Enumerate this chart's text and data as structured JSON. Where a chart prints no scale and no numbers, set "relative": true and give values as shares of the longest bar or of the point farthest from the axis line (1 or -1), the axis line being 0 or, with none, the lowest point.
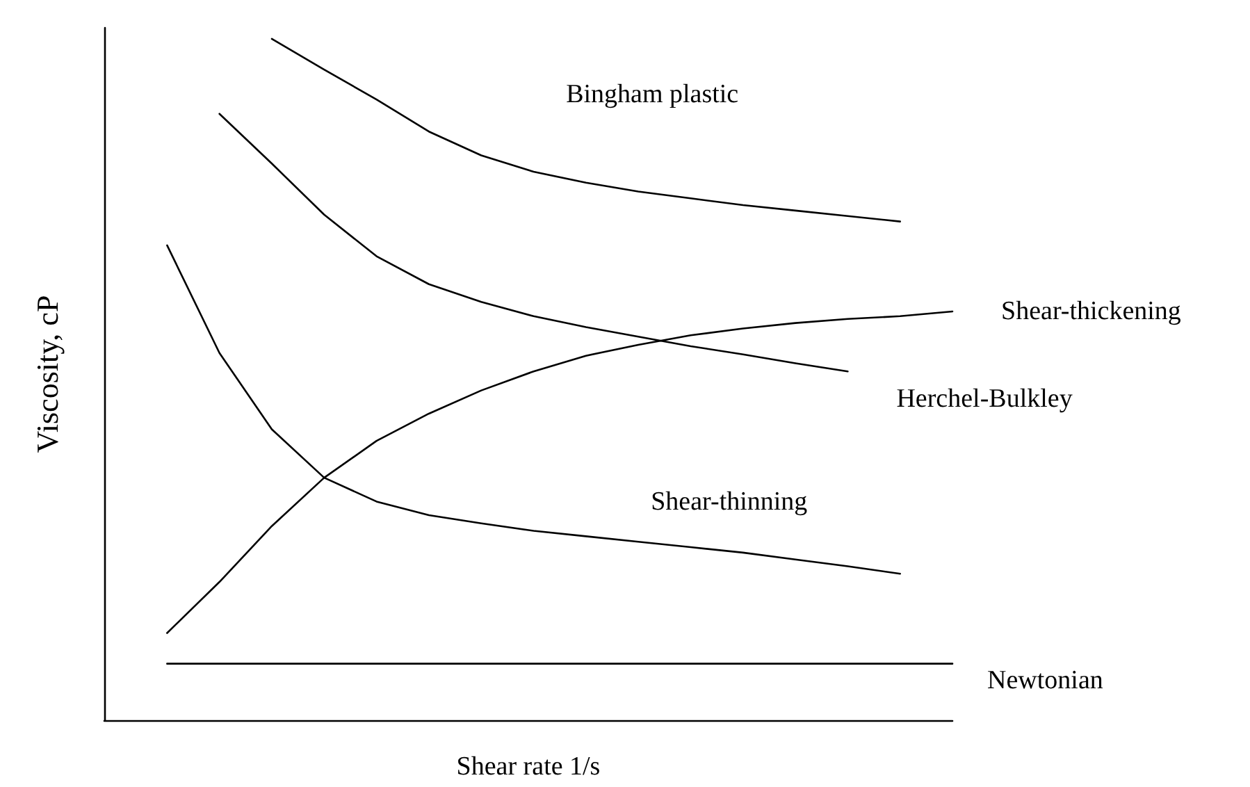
{
  "chart_data": {
    "type": "line",
    "relative": true,
    "xlabel": "Shear rate 1/s",
    "ylabel": "Viscosity, cP",
    "categories": [
      null,
      null,
      null,
      null,
      null,
      null,
      null,
      null,
      null,
      null,
      null,
      null,
      null,
      null,
      null,
      null
    ],
    "marker": "none",
    "line_style": "solid",
    "grid": false,
    "legend": false,
    "series": [
      {
        "name": "Bingham plastic",
        "color": "#000000",
        "values": [
          null,
          null,
          1.0,
          0.955,
          0.911,
          0.864,
          0.829,
          0.805,
          0.789,
          0.776,
          0.766,
          0.756,
          0.748,
          0.74,
          0.732,
          null
        ]
      },
      {
        "name": "Shear-thickening",
        "color": "#000000",
        "values": [
          0.128,
          0.203,
          0.285,
          0.356,
          0.41,
          0.45,
          0.484,
          0.512,
          0.535,
          0.551,
          0.565,
          0.575,
          0.583,
          0.589,
          0.593,
          0.6
        ]
      },
      {
        "name": "Herchel-Bulkley",
        "color": "#000000",
        "values": [
          null,
          0.89,
          0.817,
          0.742,
          0.681,
          0.64,
          0.614,
          0.593,
          0.577,
          0.563,
          0.549,
          0.537,
          0.524,
          0.512,
          null,
          null
        ]
      },
      {
        "name": "Shear-thinning",
        "color": "#000000",
        "values": [
          0.697,
          0.539,
          0.427,
          0.356,
          0.321,
          0.301,
          0.289,
          0.278,
          0.27,
          0.262,
          0.254,
          0.246,
          0.236,
          0.226,
          0.215,
          null
        ]
      },
      {
        "name": "Newtonian",
        "color": "#000000",
        "values": [
          0.083,
          0.083,
          0.083,
          0.083,
          0.083,
          0.083,
          0.083,
          0.083,
          0.083,
          0.083,
          0.083,
          0.083,
          0.083,
          0.083,
          0.083,
          0.083
        ]
      }
    ]
  }
}
